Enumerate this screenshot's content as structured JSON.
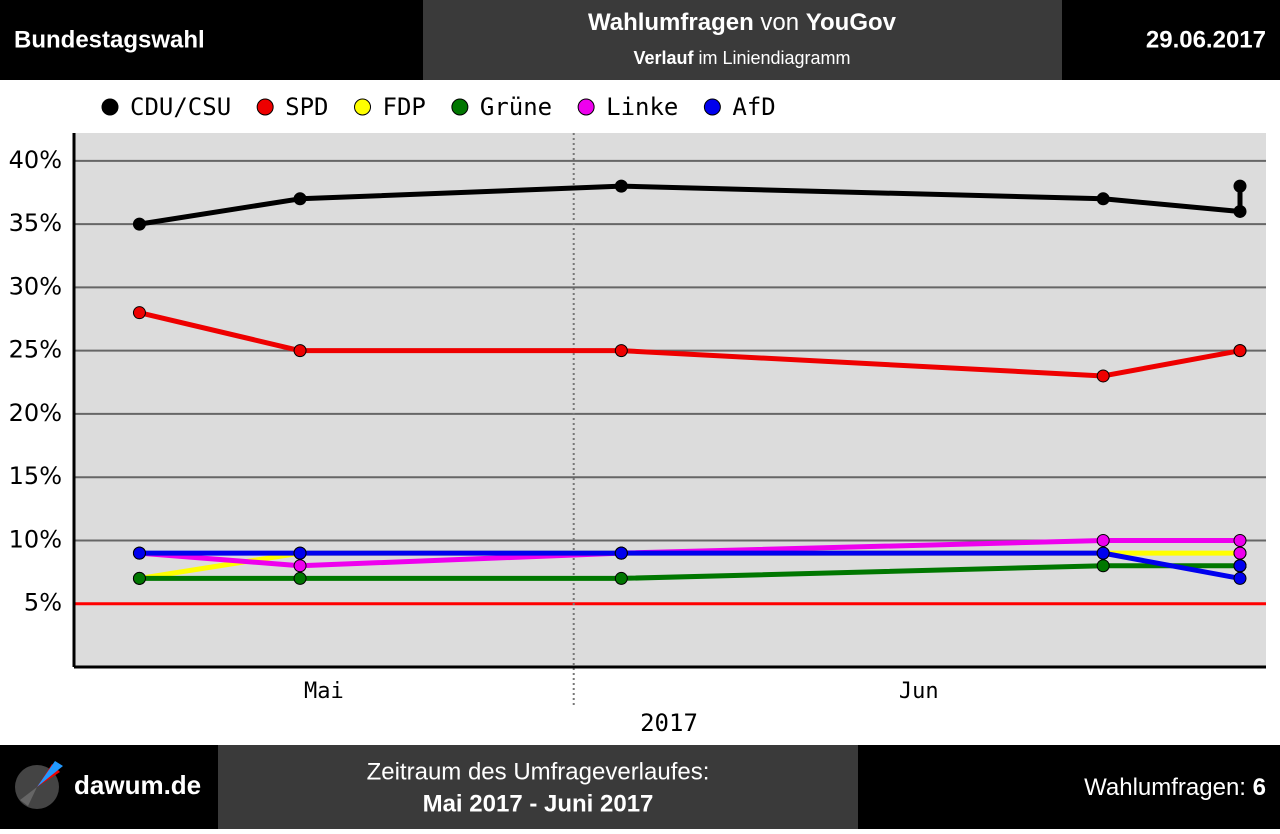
{
  "header": {
    "left": "Bundestagswahl",
    "title": [
      "Wahlumfragen",
      "von",
      "YouGov"
    ],
    "subtitle": [
      "Verlauf",
      "im Liniendiagramm"
    ],
    "date": "29.06.2017"
  },
  "chart_data": {
    "type": "line",
    "x": [
      5.19,
      5.46,
      6.0,
      6.81,
      7.04,
      7.04
    ],
    "xlim": [
      5.08,
      7.04
    ],
    "xticks": [
      {
        "value": 5.5,
        "label": "Mai"
      },
      {
        "value": 6.5,
        "label": "Jun"
      }
    ],
    "xlabel": "2017",
    "divider_x": 5.92,
    "threshold": 5,
    "threshold_color": "#ff0000",
    "ylim": [
      0,
      42.2
    ],
    "yticks": [
      {
        "value": 5,
        "label": "5%"
      },
      {
        "value": 10,
        "label": "10%"
      },
      {
        "value": 15,
        "label": "15%"
      },
      {
        "value": 20,
        "label": "20%"
      },
      {
        "value": 25,
        "label": "25%"
      },
      {
        "value": 30,
        "label": "30%"
      },
      {
        "value": 35,
        "label": "35%"
      },
      {
        "value": 40,
        "label": "40%"
      }
    ],
    "grid": true,
    "series": [
      {
        "name": "CDU/CSU",
        "color": "#000000",
        "values": [
          35,
          37,
          38,
          37,
          36,
          38
        ]
      },
      {
        "name": "SPD",
        "color": "#ee0000",
        "values": [
          28,
          25,
          25,
          23,
          25,
          25
        ]
      },
      {
        "name": "FDP",
        "color": "#ffff00",
        "values": [
          7,
          9,
          9,
          9,
          9,
          8
        ]
      },
      {
        "name": "Grüne",
        "color": "#007700",
        "values": [
          7,
          7,
          7,
          8,
          8,
          8
        ]
      },
      {
        "name": "Linke",
        "color": "#ee00ee",
        "values": [
          9,
          8,
          9,
          10,
          10,
          9
        ]
      },
      {
        "name": "AfD",
        "color": "#0000ee",
        "values": [
          9,
          9,
          9,
          9,
          7,
          8
        ]
      }
    ]
  },
  "footer": {
    "site": "dawum.de",
    "period_label": "Zeitraum des Umfrageverlaufes:",
    "period": "Mai 2017 - Juni 2017",
    "count_label": "Wahlumfragen:",
    "count": 6
  }
}
